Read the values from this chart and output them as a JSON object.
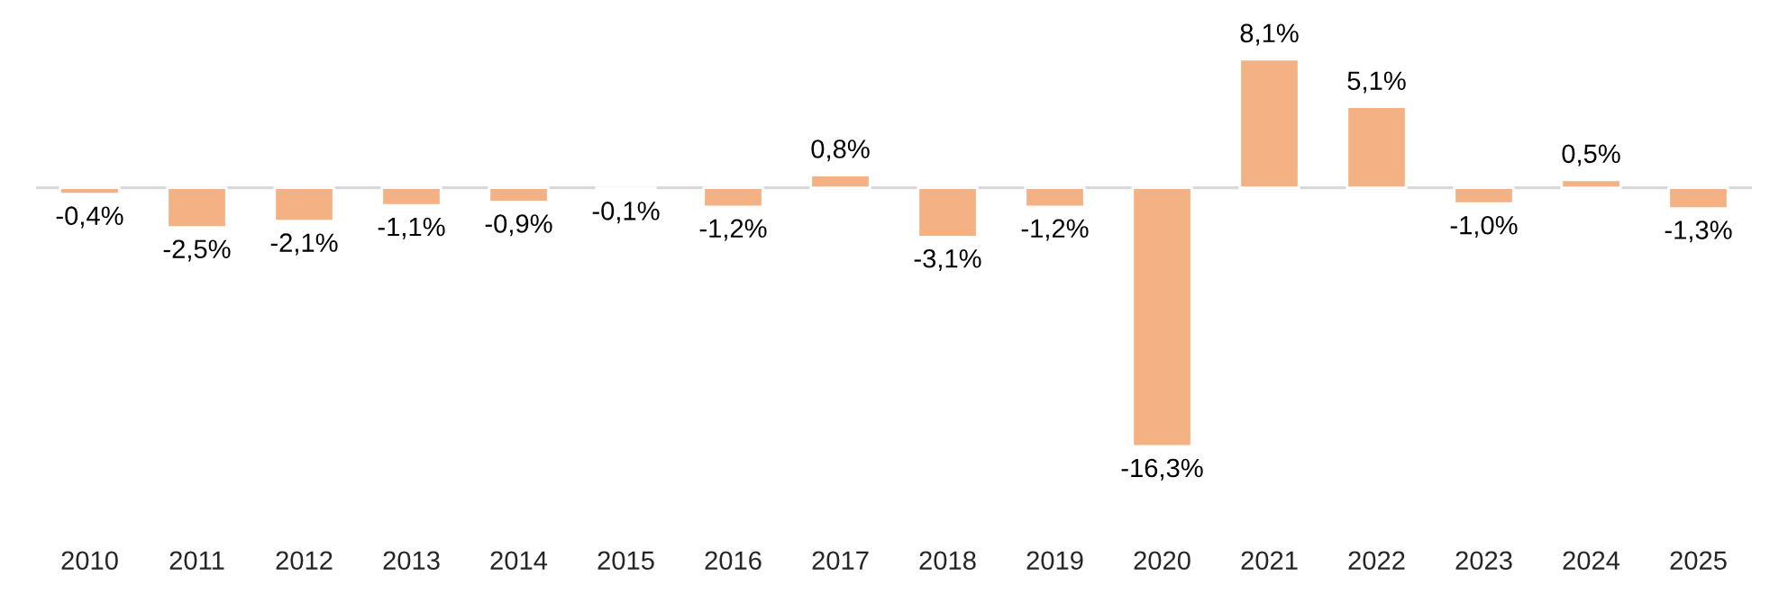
{
  "chart_data": {
    "type": "bar",
    "categories": [
      "2010",
      "2011",
      "2012",
      "2013",
      "2014",
      "2015",
      "2016",
      "2017",
      "2018",
      "2019",
      "2020",
      "2021",
      "2022",
      "2023",
      "2024",
      "2025"
    ],
    "values": [
      -0.4,
      -2.5,
      -2.1,
      -1.1,
      -0.9,
      -0.1,
      -1.2,
      0.8,
      -3.1,
      -1.2,
      -16.3,
      8.1,
      5.1,
      -1.0,
      0.5,
      -1.3
    ],
    "value_labels": [
      "-0,4%",
      "-2,5%",
      "-2,1%",
      "-1,1%",
      "-0,9%",
      "-0,1%",
      "-1,2%",
      "0,8%",
      "-3,1%",
      "-1,2%",
      "-16,3%",
      "8,1%",
      "5,1%",
      "-1,0%",
      "0,5%",
      "-1,3%"
    ],
    "color": "#f4b183",
    "grid": false,
    "legend": false
  }
}
